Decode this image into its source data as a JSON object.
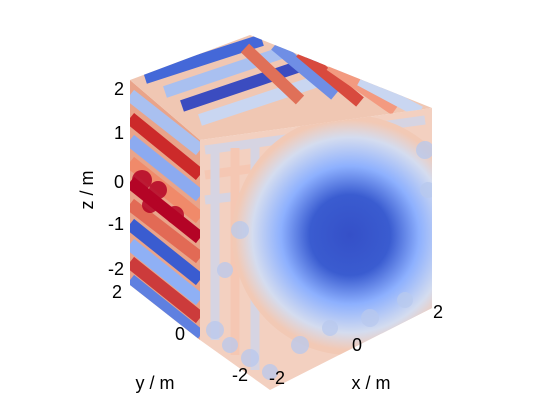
{
  "chart_data": {
    "type": "scatter",
    "title": "",
    "xlabel": "x / m",
    "ylabel": "y / m",
    "zlabel": "z / m",
    "x_ticks": [
      "-2",
      "0",
      "2"
    ],
    "y_ticks": [
      "-2",
      "0",
      "2"
    ],
    "z_ticks": [
      "-2",
      "-1",
      "0",
      "1",
      "2"
    ],
    "xlim": [
      -2.4,
      2.4
    ],
    "ylim": [
      -2.4,
      2.4
    ],
    "zlim": [
      -2.4,
      2.4
    ],
    "colormap": "coolwarm",
    "colormap_stops": [
      "#3b4cc0",
      "#8db0fe",
      "#dddddd",
      "#f4987a",
      "#b40426"
    ],
    "grid": false,
    "legend": "none"
  }
}
